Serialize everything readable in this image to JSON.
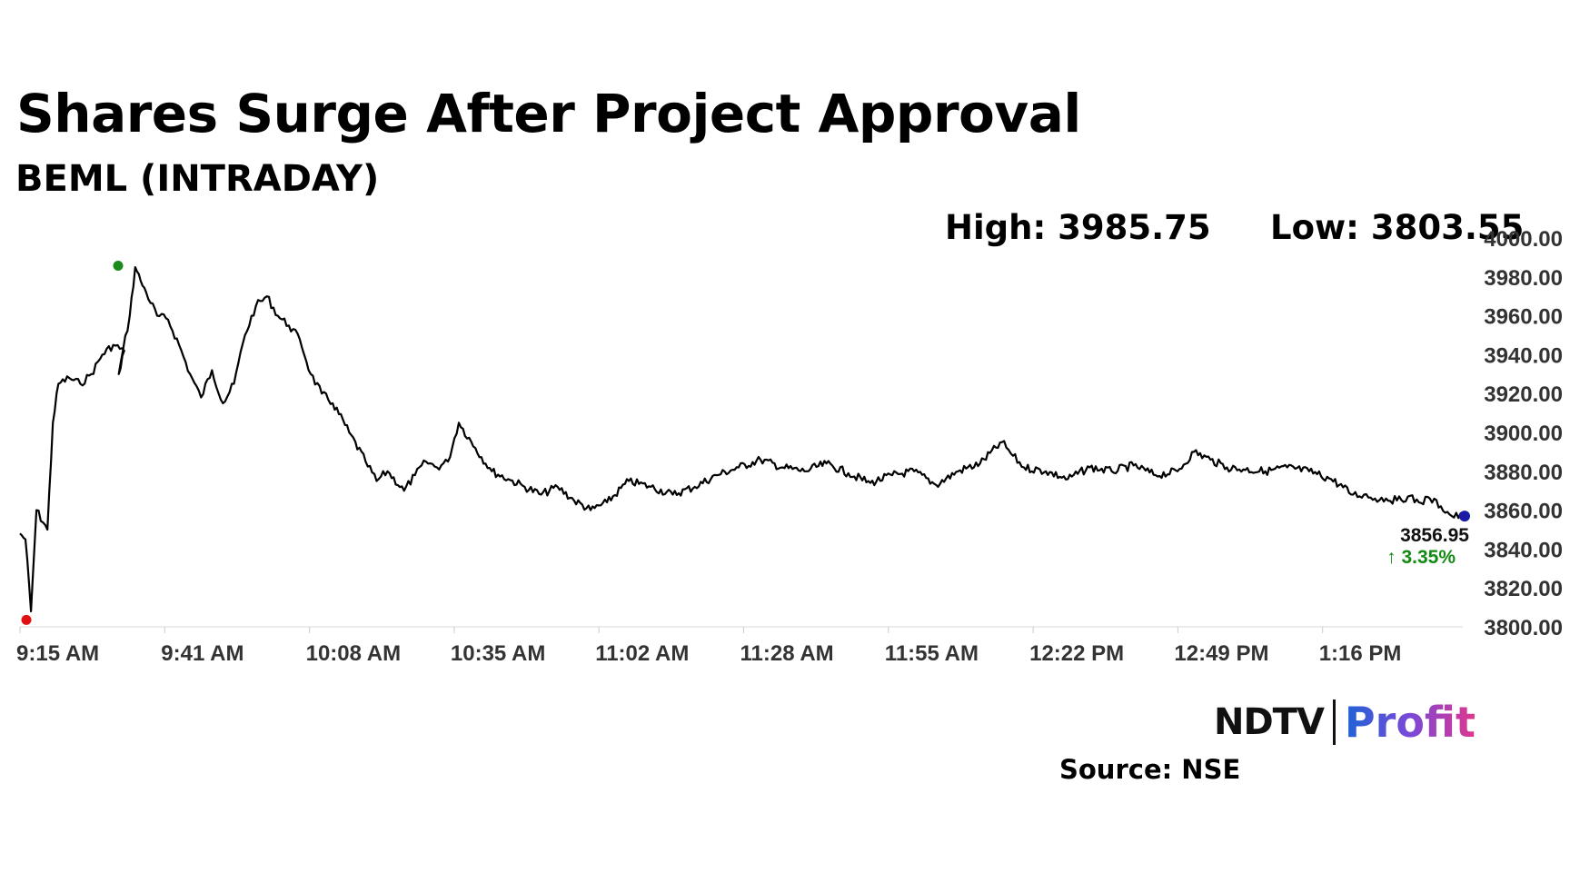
{
  "header": {
    "title": "Shares Surge After Project Approval",
    "subtitle": "BEML (INTRADAY)",
    "high_label": "High: 3985.75",
    "low_label": "Low: 3803.55"
  },
  "footer": {
    "brand_left": "NDTV",
    "brand_right": "Profit",
    "source": "Source: NSE"
  },
  "colors": {
    "line": "#000000",
    "high_marker": "#1a8a1a",
    "low_marker": "#e01010",
    "last_marker": "#1a1aa8",
    "change_up": "#138a13"
  },
  "chart_data": {
    "type": "line",
    "title": "Shares Surge After Project Approval",
    "subtitle": "BEML (INTRADAY)",
    "xlabel": "",
    "ylabel": "",
    "ylim": [
      3800,
      4000
    ],
    "y_ticks": [
      "3800.00",
      "3820.00",
      "3840.00",
      "3860.00",
      "3880.00",
      "3900.00",
      "3920.00",
      "3940.00",
      "3960.00",
      "3980.00",
      "4000.00"
    ],
    "x_ticks": [
      "9:15 AM",
      "9:41 AM",
      "10:08 AM",
      "10:35 AM",
      "11:02 AM",
      "11:28 AM",
      "11:55 AM",
      "12:22 PM",
      "12:49 PM",
      "1:16 PM"
    ],
    "series": [
      {
        "x": [
          "9:15",
          "9:16",
          "9:17",
          "9:18",
          "9:20",
          "9:21",
          "9:22",
          "9:24",
          "9:26",
          "9:28",
          "9:30",
          "9:32",
          "9:34",
          "9:33",
          "9:35",
          "9:36",
          "9:37",
          "9:38",
          "9:40",
          "9:42",
          "9:44",
          "9:46",
          "9:48",
          "9:50",
          "9:52",
          "9:54",
          "9:56",
          "9:58",
          "10:00",
          "10:02",
          "10:04",
          "10:06",
          "10:08",
          "10:10",
          "10:12",
          "10:15",
          "10:18",
          "10:20",
          "10:22",
          "10:25",
          "10:27",
          "10:29",
          "10:31",
          "10:33",
          "10:35",
          "10:38",
          "10:41",
          "10:44",
          "10:47",
          "10:50",
          "10:53",
          "10:56",
          "10:59",
          "11:02",
          "11:06",
          "11:10",
          "11:14",
          "11:18",
          "11:22",
          "11:26",
          "11:30",
          "11:34",
          "11:38",
          "11:42",
          "11:46",
          "11:50",
          "11:54",
          "11:58",
          "12:02",
          "12:06",
          "12:10",
          "12:14",
          "12:16",
          "12:18",
          "12:22",
          "12:26",
          "12:30",
          "12:34",
          "12:38",
          "12:42",
          "12:46",
          "12:49",
          "12:52",
          "12:55",
          "12:58",
          "13:02",
          "13:06",
          "13:10",
          "13:14",
          "13:18",
          "13:20",
          "13:22",
          "13:24",
          "13:26",
          "13:28",
          "13:30",
          "13:32",
          "13:34",
          "13:36",
          "13:38"
        ],
        "values": [
          3848,
          3845,
          3808,
          3860,
          3850,
          3905,
          3925,
          3928,
          3925,
          3930,
          3940,
          3945,
          3942,
          3930,
          3960,
          3985,
          3978,
          3972,
          3960,
          3958,
          3945,
          3930,
          3918,
          3932,
          3915,
          3925,
          3950,
          3965,
          3970,
          3960,
          3955,
          3948,
          3930,
          3920,
          3915,
          3900,
          3885,
          3875,
          3880,
          3870,
          3878,
          3885,
          3882,
          3885,
          3905,
          3892,
          3880,
          3876,
          3872,
          3868,
          3872,
          3865,
          3860,
          3864,
          3875,
          3872,
          3868,
          3872,
          3878,
          3882,
          3886,
          3882,
          3880,
          3884,
          3879,
          3874,
          3878,
          3880,
          3873,
          3880,
          3884,
          3895,
          3888,
          3882,
          3880,
          3876,
          3882,
          3880,
          3883,
          3878,
          3880,
          3890,
          3886,
          3882,
          3881,
          3880,
          3882,
          3880,
          3876,
          3868,
          3868,
          3866,
          3866,
          3865,
          3867,
          3864,
          3866,
          3862,
          3856.95,
          3856.95
        ],
        "last_value": "3856.95",
        "last_change": "↑ 3.35%"
      }
    ],
    "high": 3985.75,
    "low": 3803.55,
    "grid": false
  }
}
